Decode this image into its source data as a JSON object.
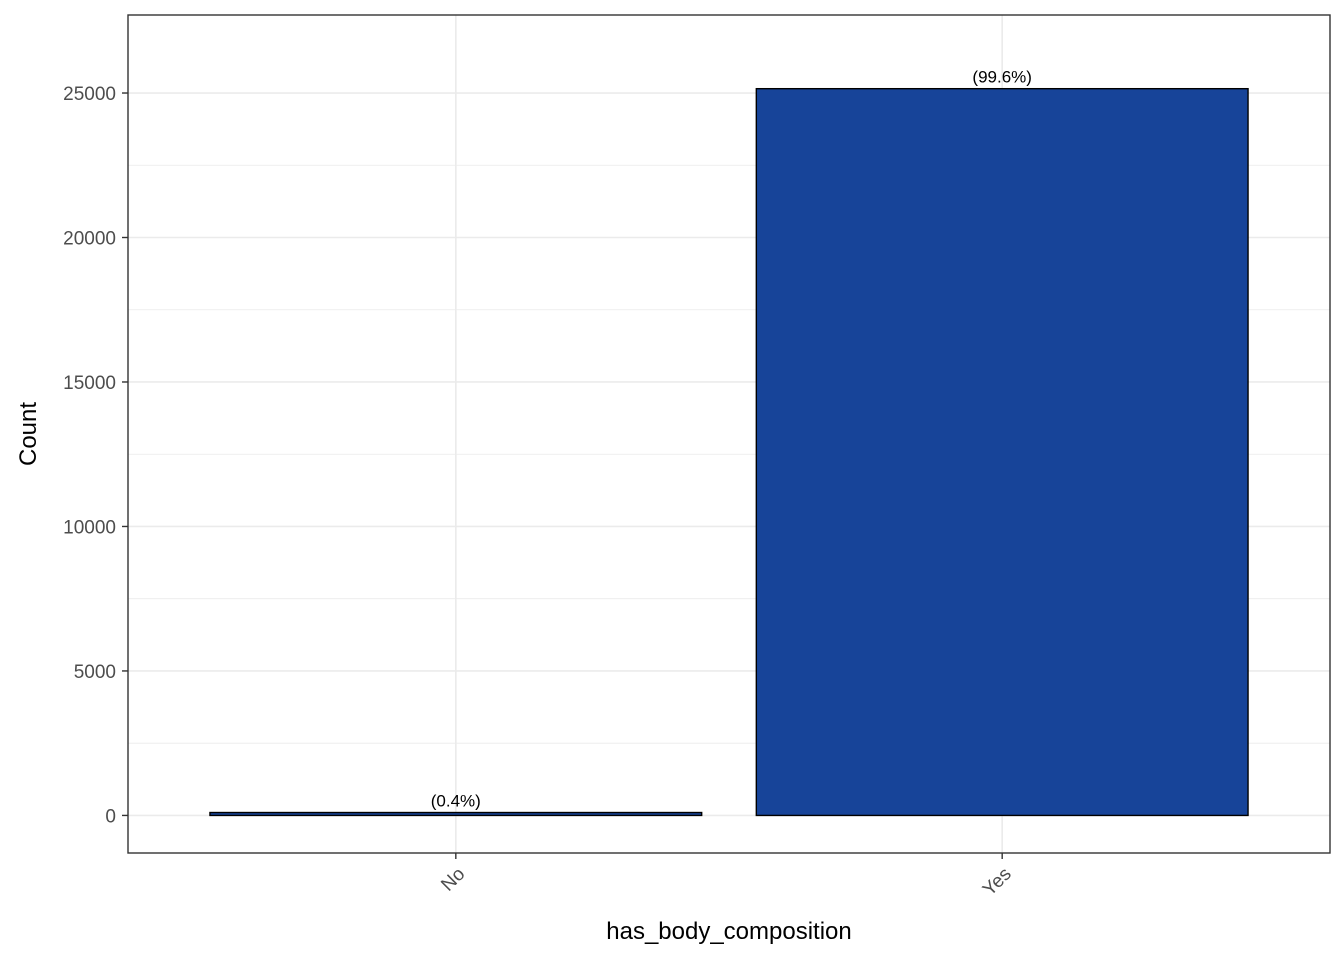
{
  "chart_data": {
    "type": "bar",
    "categories": [
      "No",
      "Yes"
    ],
    "values": [
      101,
      25150
    ],
    "data_labels": [
      "(0.4%)",
      "(99.6%)"
    ],
    "xlabel": "has_body_composition",
    "ylabel": "Count",
    "ylim": [
      -1300,
      27700
    ],
    "yticks": [
      0,
      5000,
      10000,
      15000,
      20000,
      25000
    ],
    "ytick_labels": [
      "0",
      "5000",
      "10000",
      "15000",
      "20000",
      "25000"
    ],
    "grid": true,
    "legend": "none",
    "colors": {
      "bar_fill": "#174499",
      "bar_edge": "#000000",
      "grid": "#ebebeb",
      "panel_border": "#333333"
    }
  }
}
